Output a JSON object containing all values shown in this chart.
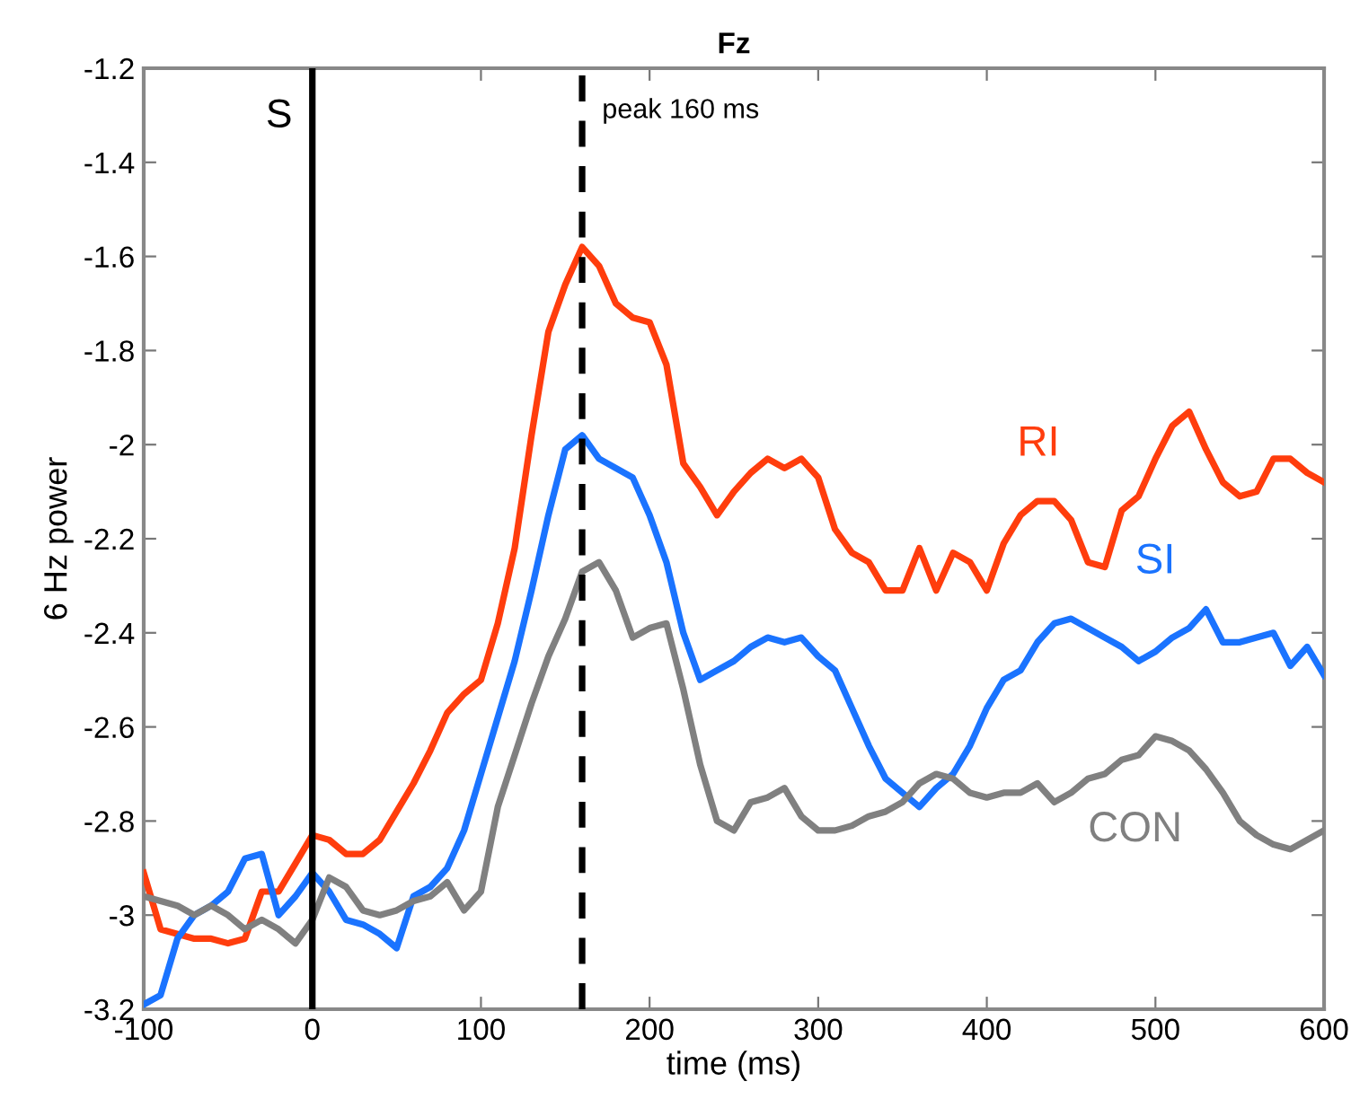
{
  "chart_data": {
    "type": "line",
    "title": "Fz",
    "xlabel": "time (ms)",
    "ylabel": "6 Hz power",
    "x": [
      -100,
      -90,
      -80,
      -70,
      -60,
      -50,
      -40,
      -30,
      -20,
      -10,
      0,
      10,
      20,
      30,
      40,
      50,
      60,
      70,
      80,
      90,
      100,
      110,
      120,
      130,
      140,
      150,
      160,
      170,
      180,
      190,
      200,
      210,
      220,
      230,
      240,
      250,
      260,
      270,
      280,
      290,
      300,
      310,
      320,
      330,
      340,
      350,
      360,
      370,
      380,
      390,
      400,
      410,
      420,
      430,
      440,
      450,
      460,
      470,
      480,
      490,
      500,
      510,
      520,
      530,
      540,
      550,
      560,
      570,
      580,
      590,
      600
    ],
    "series": [
      {
        "name": "RI",
        "color": "#ff3d0d",
        "values": [
          -2.91,
          -3.03,
          -3.04,
          -3.05,
          -3.05,
          -3.06,
          -3.05,
          -2.95,
          -2.95,
          -2.89,
          -2.83,
          -2.84,
          -2.87,
          -2.87,
          -2.84,
          -2.78,
          -2.72,
          -2.65,
          -2.57,
          -2.53,
          -2.5,
          -2.38,
          -2.22,
          -1.98,
          -1.76,
          -1.66,
          -1.58,
          -1.62,
          -1.7,
          -1.73,
          -1.74,
          -1.83,
          -2.04,
          -2.09,
          -2.15,
          -2.1,
          -2.06,
          -2.03,
          -2.05,
          -2.03,
          -2.07,
          -2.18,
          -2.23,
          -2.25,
          -2.31,
          -2.31,
          -2.22,
          -2.31,
          -2.23,
          -2.25,
          -2.31,
          -2.21,
          -2.15,
          -2.12,
          -2.12,
          -2.16,
          -2.25,
          -2.26,
          -2.14,
          -2.11,
          -2.03,
          -1.96,
          -1.93,
          -2.01,
          -2.08,
          -2.11,
          -2.1,
          -2.03,
          -2.03,
          -2.06,
          -2.08
        ]
      },
      {
        "name": "SI",
        "color": "#1a73ff",
        "values": [
          -3.19,
          -3.17,
          -3.05,
          -3.0,
          -2.98,
          -2.95,
          -2.88,
          -2.87,
          -3.0,
          -2.96,
          -2.91,
          -2.95,
          -3.01,
          -3.02,
          -3.04,
          -3.07,
          -2.96,
          -2.94,
          -2.9,
          -2.82,
          -2.7,
          -2.58,
          -2.46,
          -2.31,
          -2.15,
          -2.01,
          -1.98,
          -2.03,
          -2.05,
          -2.07,
          -2.15,
          -2.25,
          -2.4,
          -2.5,
          -2.48,
          -2.46,
          -2.43,
          -2.41,
          -2.42,
          -2.41,
          -2.45,
          -2.48,
          -2.56,
          -2.64,
          -2.71,
          -2.74,
          -2.77,
          -2.73,
          -2.7,
          -2.64,
          -2.56,
          -2.5,
          -2.48,
          -2.42,
          -2.38,
          -2.37,
          -2.39,
          -2.41,
          -2.43,
          -2.46,
          -2.44,
          -2.41,
          -2.39,
          -2.35,
          -2.42,
          -2.42,
          -2.41,
          -2.4,
          -2.47,
          -2.43,
          -2.49
        ]
      },
      {
        "name": "CON",
        "color": "#808080",
        "values": [
          -2.96,
          -2.97,
          -2.98,
          -3.0,
          -2.98,
          -3.0,
          -3.03,
          -3.01,
          -3.03,
          -3.06,
          -3.01,
          -2.92,
          -2.94,
          -2.99,
          -3.0,
          -2.99,
          -2.97,
          -2.96,
          -2.93,
          -2.99,
          -2.95,
          -2.77,
          -2.66,
          -2.55,
          -2.45,
          -2.37,
          -2.27,
          -2.25,
          -2.31,
          -2.41,
          -2.39,
          -2.38,
          -2.52,
          -2.68,
          -2.8,
          -2.82,
          -2.76,
          -2.75,
          -2.73,
          -2.79,
          -2.82,
          -2.82,
          -2.81,
          -2.79,
          -2.78,
          -2.76,
          -2.72,
          -2.7,
          -2.71,
          -2.74,
          -2.75,
          -2.74,
          -2.74,
          -2.72,
          -2.76,
          -2.74,
          -2.71,
          -2.7,
          -2.67,
          -2.66,
          -2.62,
          -2.63,
          -2.65,
          -2.69,
          -2.74,
          -2.8,
          -2.83,
          -2.85,
          -2.86,
          -2.84,
          -2.82
        ]
      }
    ],
    "xlim": [
      -100,
      600
    ],
    "xticks": [
      -100,
      0,
      100,
      200,
      300,
      400,
      500,
      600
    ],
    "ylim": [
      -3.2,
      -1.2
    ],
    "yticks": [
      -3.2,
      -3,
      -2.8,
      -2.6,
      -2.4,
      -2.2,
      -2,
      -1.8,
      -1.6,
      -1.4,
      -1.2
    ],
    "ref_lines": [
      {
        "axis": "x",
        "value": 0,
        "label": "S",
        "color": "#000000",
        "line_style": "solid"
      },
      {
        "axis": "x",
        "value": 160,
        "label": "peak 160 ms",
        "color": "#000000",
        "line_style": "dashed"
      }
    ],
    "grid": false,
    "legend": false,
    "marker": "none",
    "line_style": "solid"
  }
}
